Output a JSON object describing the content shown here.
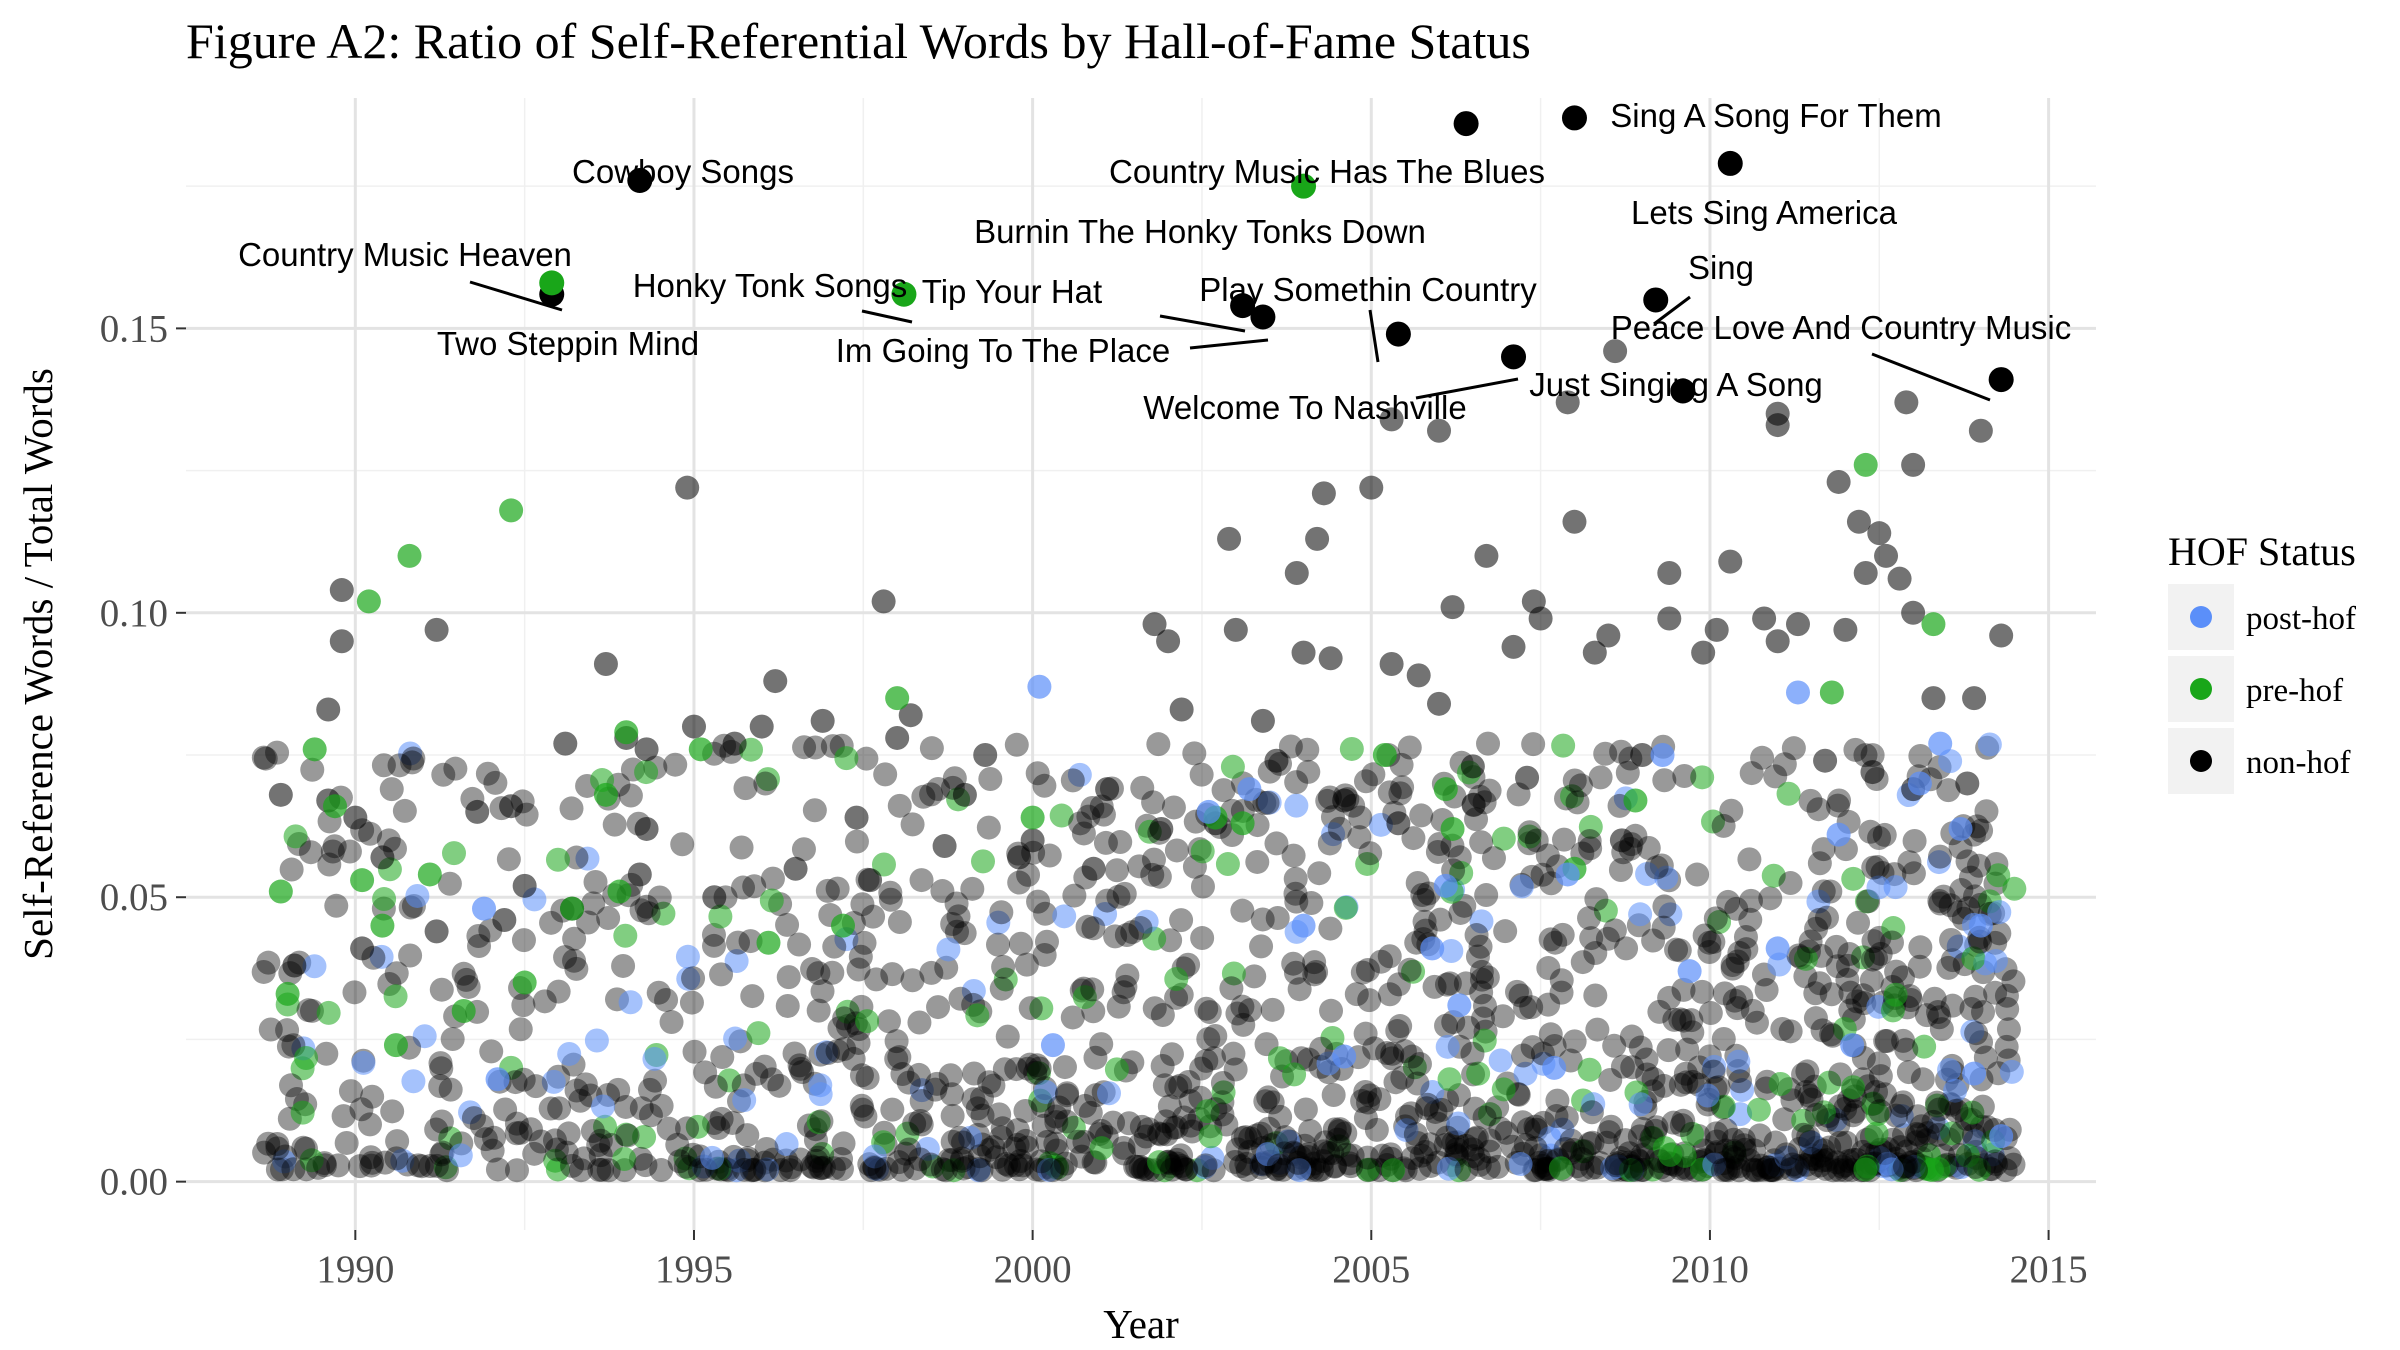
{
  "chart_data": {
    "type": "scatter",
    "title": "Figure A2: Ratio of Self-Referential Words by Hall-of-Fame Status",
    "xlabel": "Year",
    "ylabel": "Self-Reference Words / Total Words",
    "xlim": [
      1987.5,
      2015.7
    ],
    "ylim": [
      -0.0085,
      0.1905
    ],
    "x_ticks": [
      1990,
      1995,
      2000,
      2005,
      2010,
      2015
    ],
    "x_tick_labels": [
      "1990",
      "1995",
      "2000",
      "2005",
      "2010",
      "2015"
    ],
    "y_ticks": [
      0.0,
      0.05,
      0.1,
      0.15
    ],
    "y_tick_labels": [
      "0.00",
      "0.05",
      "0.10",
      "0.15"
    ],
    "grid": true,
    "legend": {
      "title": "HOF Status",
      "position": "right",
      "entries": [
        {
          "label": "post-hof",
          "color": "#5B8FF9"
        },
        {
          "label": "pre-hof",
          "color": "#19A619"
        },
        {
          "label": "non-hof",
          "color": "#000000"
        }
      ]
    },
    "series": [
      {
        "name": "non-hof",
        "color": "#000000",
        "points": [
          [
            1989.8,
            0.104
          ],
          [
            1989.8,
            0.095
          ],
          [
            1989.6,
            0.083
          ],
          [
            1991.2,
            0.097
          ],
          [
            1994.9,
            0.122
          ],
          [
            1993.7,
            0.091
          ],
          [
            1997.8,
            0.102
          ],
          [
            1988.9,
            0.068
          ],
          [
            1989.6,
            0.067
          ],
          [
            1990.0,
            0.064
          ],
          [
            1990.4,
            0.057
          ],
          [
            1991.8,
            0.065
          ],
          [
            1992.3,
            0.066
          ],
          [
            1992.5,
            0.052
          ],
          [
            1993.1,
            0.077
          ],
          [
            1994.0,
            0.078
          ],
          [
            1994.3,
            0.076
          ],
          [
            1994.3,
            0.062
          ],
          [
            1995.0,
            0.08
          ],
          [
            1995.6,
            0.077
          ],
          [
            1996.0,
            0.08
          ],
          [
            1996.2,
            0.088
          ],
          [
            1996.9,
            0.081
          ],
          [
            1997.4,
            0.064
          ],
          [
            1998.0,
            0.078
          ],
          [
            1998.2,
            0.082
          ],
          [
            1999.3,
            0.075
          ],
          [
            1999.0,
            0.068
          ],
          [
            2000.0,
            0.06
          ],
          [
            2001.1,
            0.069
          ],
          [
            2001.8,
            0.098
          ],
          [
            2002.0,
            0.095
          ],
          [
            2002.2,
            0.083
          ],
          [
            2002.9,
            0.113
          ],
          [
            2003.0,
            0.097
          ],
          [
            2003.4,
            0.081
          ],
          [
            2003.9,
            0.107
          ],
          [
            2004.0,
            0.093
          ],
          [
            2004.2,
            0.113
          ],
          [
            2004.3,
            0.121
          ],
          [
            2004.4,
            0.092
          ],
          [
            2005.0,
            0.122
          ],
          [
            2005.3,
            0.091
          ],
          [
            2005.7,
            0.089
          ],
          [
            2006.0,
            0.084
          ],
          [
            2006.2,
            0.101
          ],
          [
            2006.7,
            0.11
          ],
          [
            2007.1,
            0.094
          ],
          [
            2007.4,
            0.102
          ],
          [
            2007.5,
            0.099
          ],
          [
            2008.0,
            0.116
          ],
          [
            2008.3,
            0.093
          ],
          [
            2008.5,
            0.096
          ],
          [
            2009.4,
            0.107
          ],
          [
            2009.4,
            0.099
          ],
          [
            2009.9,
            0.093
          ],
          [
            2010.1,
            0.097
          ],
          [
            2010.3,
            0.109
          ],
          [
            2010.8,
            0.099
          ],
          [
            2011.3,
            0.098
          ],
          [
            2011.9,
            0.123
          ],
          [
            2012.0,
            0.097
          ],
          [
            2012.2,
            0.116
          ],
          [
            2012.3,
            0.107
          ],
          [
            2012.5,
            0.114
          ],
          [
            2012.8,
            0.106
          ],
          [
            2013.0,
            0.126
          ],
          [
            2013.0,
            0.1
          ],
          [
            2013.3,
            0.085
          ],
          [
            2013.9,
            0.085
          ],
          [
            2014.3,
            0.096
          ],
          [
            2014.0,
            0.132
          ],
          [
            2012.9,
            0.137
          ],
          [
            2011.0,
            0.133
          ],
          [
            2011.0,
            0.135
          ],
          [
            2008.6,
            0.146
          ],
          [
            2009.6,
            0.139
          ],
          [
            2007.9,
            0.137
          ],
          [
            2006.0,
            0.132
          ],
          [
            2005.3,
            0.134
          ],
          [
            2012.6,
            0.11
          ],
          [
            2013.0,
            0.069
          ],
          [
            2011.0,
            0.095
          ],
          [
            2011.7,
            0.074
          ],
          [
            2012.4,
            0.072
          ],
          [
            2013.8,
            0.07
          ],
          [
            2009.0,
            0.075
          ],
          [
            2008.7,
            0.06
          ],
          [
            2007.3,
            0.071
          ],
          [
            2006.5,
            0.073
          ],
          [
            2005.4,
            0.063
          ],
          [
            2004.6,
            0.067
          ],
          [
            2003.6,
            0.074
          ],
          [
            2002.7,
            0.063
          ],
          [
            2001.9,
            0.062
          ],
          [
            2000.9,
            0.055
          ],
          [
            1999.8,
            0.057
          ],
          [
            1998.7,
            0.059
          ],
          [
            1997.6,
            0.053
          ],
          [
            1996.5,
            0.055
          ],
          [
            1995.3,
            0.05
          ],
          [
            1994.2,
            0.054
          ],
          [
            1993.2,
            0.048
          ],
          [
            1992.2,
            0.046
          ],
          [
            1991.2,
            0.044
          ],
          [
            1990.1,
            0.041
          ],
          [
            1989.1,
            0.038
          ]
        ],
        "labeled_points": [
          {
            "x": 1994.2,
            "y": 0.176,
            "label": "Cowboy Songs"
          },
          {
            "x": 1992.9,
            "y": 0.156,
            "label": "Two Steppin Mind"
          },
          {
            "x": 2006.4,
            "y": 0.186,
            "label": "Country Music Has The Blues"
          },
          {
            "x": 2008.0,
            "y": 0.187,
            "label": "Sing A Song For Them"
          },
          {
            "x": 2010.3,
            "y": 0.179,
            "label": "Lets Sing America"
          },
          {
            "x": 2003.1,
            "y": 0.154,
            "label": "Tip Your Hat"
          },
          {
            "x": 2003.4,
            "y": 0.152,
            "label": "Im Going To The Place"
          },
          {
            "x": 2005.4,
            "y": 0.149,
            "label": "Play Somethin Country"
          },
          {
            "x": 2007.1,
            "y": 0.145,
            "label": "Welcome To Nashville"
          },
          {
            "x": 2009.2,
            "y": 0.155,
            "label": "Sing"
          },
          {
            "x": 2014.3,
            "y": 0.141,
            "label": "Peace Love And Country Music"
          },
          {
            "x": 2009.6,
            "y": 0.139,
            "label": "Just Singing A Song"
          }
        ]
      },
      {
        "name": "pre-hof",
        "color": "#19A619",
        "points": [
          [
            1990.2,
            0.102
          ],
          [
            1990.8,
            0.11
          ],
          [
            1992.3,
            0.118
          ],
          [
            1989.4,
            0.076
          ],
          [
            1989.7,
            0.066
          ],
          [
            1990.1,
            0.053
          ],
          [
            1990.4,
            0.045
          ],
          [
            1991.1,
            0.054
          ],
          [
            1988.9,
            0.051
          ],
          [
            1989.0,
            0.033
          ],
          [
            1993.7,
            0.068
          ],
          [
            1993.9,
            0.051
          ],
          [
            1994.0,
            0.079
          ],
          [
            1995.1,
            0.076
          ],
          [
            1998.0,
            0.085
          ],
          [
            2000.0,
            0.064
          ],
          [
            2002.7,
            0.064
          ],
          [
            2003.1,
            0.063
          ],
          [
            2005.2,
            0.075
          ],
          [
            2006.2,
            0.062
          ],
          [
            2006.1,
            0.069
          ],
          [
            2012.3,
            0.126
          ],
          [
            2013.3,
            0.098
          ],
          [
            2008.0,
            0.055
          ],
          [
            2011.8,
            0.086
          ],
          [
            2008.9,
            0.067
          ],
          [
            1993.2,
            0.048
          ],
          [
            1992.5,
            0.035
          ],
          [
            1997.2,
            0.045
          ],
          [
            1996.1,
            0.042
          ],
          [
            1991.6,
            0.03
          ],
          [
            1990.6,
            0.024
          ]
        ],
        "labeled_points": [
          {
            "x": 1992.9,
            "y": 0.158,
            "label": "Country Music Heaven"
          },
          {
            "x": 1998.1,
            "y": 0.156,
            "label": "Honky Tonk Songs"
          },
          {
            "x": 2004.0,
            "y": 0.175,
            "label": "Burnin The Honky Tonks Down"
          }
        ]
      },
      {
        "name": "post-hof",
        "color": "#5B8FF9",
        "points": [
          [
            2000.1,
            0.087
          ],
          [
            2011.3,
            0.086
          ],
          [
            2009.3,
            0.075
          ],
          [
            2013.4,
            0.077
          ],
          [
            2013.1,
            0.07
          ],
          [
            2003.2,
            0.069
          ],
          [
            2002.6,
            0.065
          ],
          [
            1991.9,
            0.048
          ],
          [
            1992.1,
            0.018
          ],
          [
            2004.0,
            0.045
          ],
          [
            2005.9,
            0.041
          ],
          [
            2006.1,
            0.052
          ],
          [
            2007.9,
            0.054
          ],
          [
            2009.7,
            0.037
          ],
          [
            2011.0,
            0.041
          ],
          [
            2011.9,
            0.061
          ],
          [
            2013.7,
            0.062
          ],
          [
            2014.0,
            0.045
          ],
          [
            2012.1,
            0.024
          ],
          [
            2004.6,
            0.022
          ],
          [
            2006.3,
            0.031
          ],
          [
            2007.7,
            0.02
          ],
          [
            2000.3,
            0.024
          ],
          [
            2014.3,
            0.008
          ],
          [
            2013.9,
            0.019
          ]
        ]
      }
    ],
    "annotations": [
      {
        "label": "Cowboy Songs",
        "point_x": 1994.2,
        "point_y": 0.176
      },
      {
        "label": "Country Music Heaven",
        "point_x": 1992.9,
        "point_y": 0.158
      },
      {
        "label": "Two Steppin Mind",
        "point_x": 1992.9,
        "point_y": 0.156
      },
      {
        "label": "Honky Tonk Songs",
        "point_x": 1998.1,
        "point_y": 0.156
      },
      {
        "label": "Im Going To The Place",
        "point_x": 2003.4,
        "point_y": 0.152
      },
      {
        "label": "Tip Your Hat",
        "point_x": 2003.1,
        "point_y": 0.154
      },
      {
        "label": "Country Music Has The Blues",
        "point_x": 2006.4,
        "point_y": 0.186
      },
      {
        "label": "Burnin The Honky Tonks Down",
        "point_x": 2004.0,
        "point_y": 0.175
      },
      {
        "label": "Play Somethin Country",
        "point_x": 2005.4,
        "point_y": 0.149
      },
      {
        "label": "Welcome To Nashville",
        "point_x": 2007.1,
        "point_y": 0.145
      },
      {
        "label": "Sing A Song For Them",
        "point_x": 2008.0,
        "point_y": 0.187
      },
      {
        "label": "Lets Sing America",
        "point_x": 2010.3,
        "point_y": 0.179
      },
      {
        "label": "Sing",
        "point_x": 2009.2,
        "point_y": 0.155
      },
      {
        "label": "Peace Love And Country Music",
        "point_x": 2014.3,
        "point_y": 0.141
      },
      {
        "label": "Just Singing A Song",
        "point_x": 2009.6,
        "point_y": 0.139
      }
    ]
  }
}
